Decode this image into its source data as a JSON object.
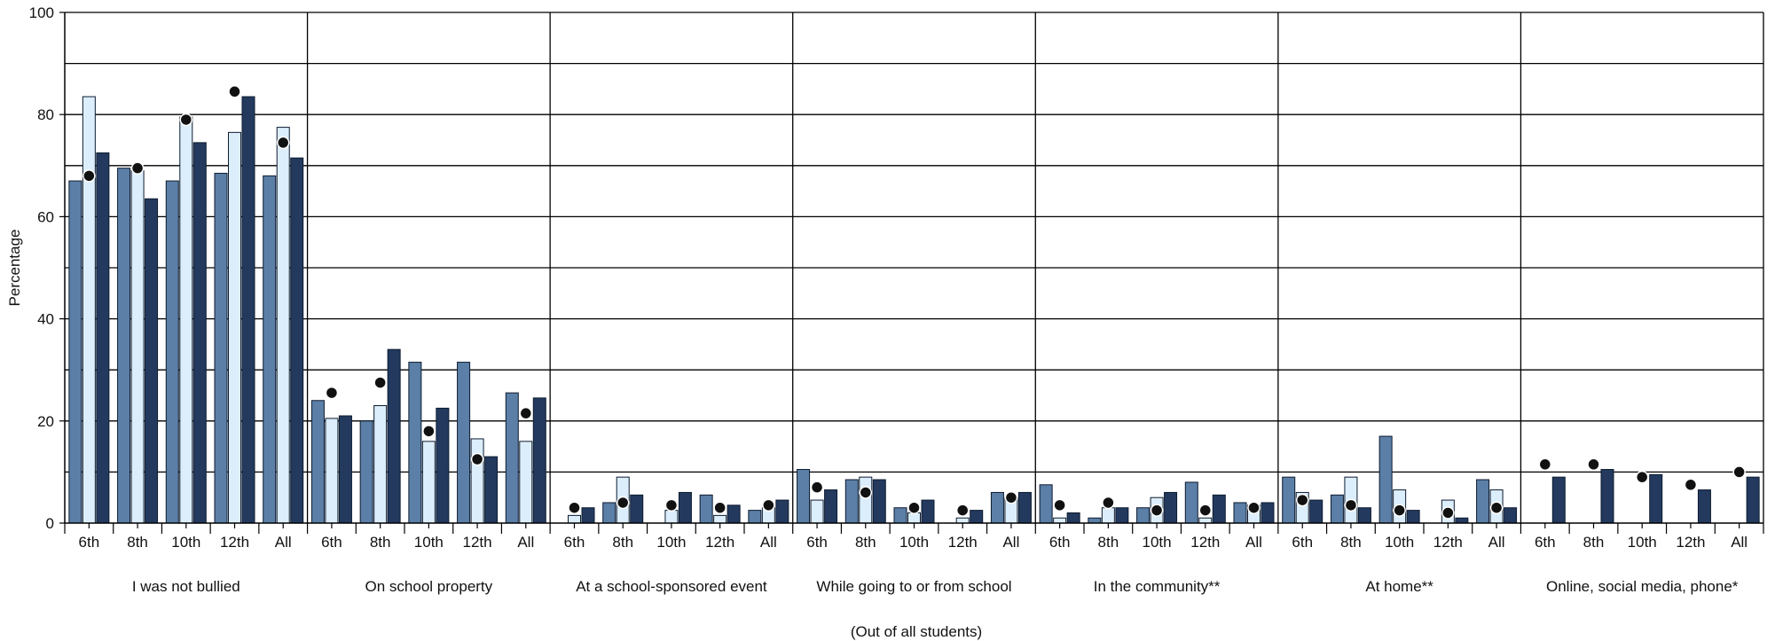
{
  "chart_data": {
    "type": "bar",
    "ylabel": "Percentage",
    "xlabel": "(Out of all students)",
    "ylim": [
      0,
      100
    ],
    "yticks": [
      0,
      20,
      40,
      60,
      80,
      100
    ],
    "grid": true,
    "colors": {
      "series1": "#5b7fa6",
      "series2": "#dceefb",
      "series3": "#233a5e",
      "marker": "#111111",
      "marker_outline": "#ffffff",
      "grid": "#000000"
    },
    "subcategories": [
      "6th",
      "8th",
      "10th",
      "12th",
      "All"
    ],
    "groups": [
      {
        "label": "I was not bullied",
        "series1": [
          67,
          69.5,
          67,
          68.5,
          68
        ],
        "series2": [
          83.5,
          69,
          79.5,
          76.5,
          77.5
        ],
        "series3": [
          72.5,
          63.5,
          74.5,
          83.5,
          71.5
        ],
        "markers": [
          68,
          69.5,
          79,
          84.5,
          74.5
        ]
      },
      {
        "label": "On school property",
        "series1": [
          24,
          20,
          31.5,
          31.5,
          25.5
        ],
        "series2": [
          20.5,
          23,
          16,
          16.5,
          16
        ],
        "series3": [
          21,
          34,
          22.5,
          13,
          24.5
        ],
        "markers": [
          25.5,
          27.5,
          18,
          12.5,
          21.5
        ]
      },
      {
        "label": "At a school-sponsored event",
        "series1": [
          0,
          4,
          0,
          5.5,
          2.5
        ],
        "series2": [
          1.5,
          9,
          2.5,
          1.5,
          3
        ],
        "series3": [
          3,
          5.5,
          6,
          3.5,
          4.5
        ],
        "markers": [
          3,
          4,
          3.5,
          3,
          3.5
        ]
      },
      {
        "label": "While going to or from school",
        "series1": [
          10.5,
          8.5,
          3,
          0,
          6
        ],
        "series2": [
          4.5,
          9,
          2,
          1,
          5
        ],
        "series3": [
          6.5,
          8.5,
          4.5,
          2.5,
          6
        ],
        "markers": [
          7,
          6,
          3,
          2.5,
          5
        ]
      },
      {
        "label": "In the community**",
        "series1": [
          7.5,
          1,
          3,
          8,
          4
        ],
        "series2": [
          1,
          3,
          5,
          1,
          3.5
        ],
        "series3": [
          2,
          3,
          6,
          5.5,
          4
        ],
        "markers": [
          3.5,
          4,
          2.5,
          2.5,
          3
        ]
      },
      {
        "label": "At home**",
        "series1": [
          9,
          5.5,
          17,
          0,
          8.5
        ],
        "series2": [
          6,
          9,
          6.5,
          4.5,
          6.5
        ],
        "series3": [
          4.5,
          3,
          2.5,
          1,
          3
        ],
        "markers": [
          4.5,
          3.5,
          2.5,
          2,
          3
        ]
      },
      {
        "label": "Online, social media, phone*",
        "series1": [
          0,
          0,
          0,
          0,
          0
        ],
        "series2": [
          0,
          0,
          0,
          0,
          0
        ],
        "series3": [
          9,
          10.5,
          9.5,
          6.5,
          9
        ],
        "markers": [
          11.5,
          11.5,
          9,
          7.5,
          10
        ]
      }
    ]
  }
}
